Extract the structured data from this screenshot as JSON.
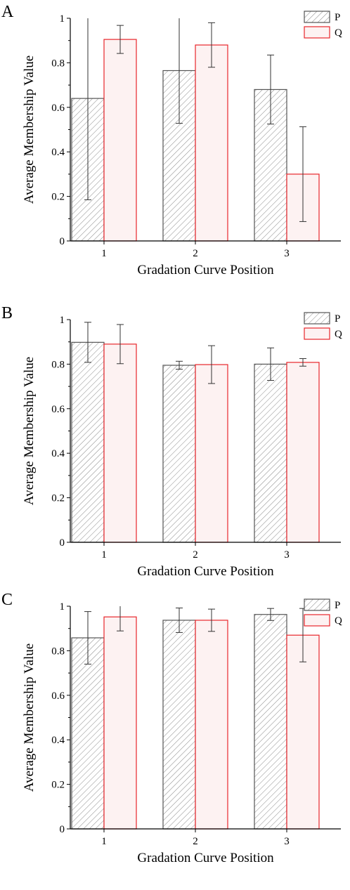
{
  "chart_data": [
    {
      "panel_label": "A",
      "type": "bar",
      "xlabel": "Gradation Curve Position",
      "ylabel": "Average Membership Value",
      "ylim": [
        0,
        1
      ],
      "yticks": [
        "0",
        "0.2",
        "0.4",
        "0.6",
        "0.8",
        "1"
      ],
      "categories": [
        "1",
        "2",
        "3"
      ],
      "legend_position": "top-right",
      "series": [
        {
          "name": "P",
          "values": [
            0.64,
            0.765,
            0.68
          ],
          "errors": [
            0.455,
            0.237,
            0.155
          ],
          "style": "hatched",
          "color": "#555555"
        },
        {
          "name": "Q",
          "values": [
            0.905,
            0.88,
            0.3
          ],
          "errors": [
            0.063,
            0.1,
            0.213
          ],
          "style": "filled",
          "color": "#e8262b",
          "fill": "#fdf2f2"
        }
      ]
    },
    {
      "panel_label": "B",
      "type": "bar",
      "xlabel": "Gradation Curve Position",
      "ylabel": "Average Membership Value",
      "ylim": [
        0,
        1
      ],
      "yticks": [
        "0",
        "0.2",
        "0.4",
        "0.6",
        "0.8",
        "1"
      ],
      "categories": [
        "1",
        "2",
        "3"
      ],
      "legend_position": "top-right",
      "series": [
        {
          "name": "P",
          "values": [
            0.898,
            0.795,
            0.8
          ],
          "errors": [
            0.09,
            0.018,
            0.073
          ],
          "style": "hatched",
          "color": "#555555"
        },
        {
          "name": "Q",
          "values": [
            0.89,
            0.798,
            0.808
          ],
          "errors": [
            0.088,
            0.085,
            0.017
          ],
          "style": "filled",
          "color": "#e8262b",
          "fill": "#fdf2f2"
        }
      ]
    },
    {
      "panel_label": "C",
      "type": "bar",
      "xlabel": "Gradation Curve Position",
      "ylabel": "Average Membership Value",
      "ylim": [
        0,
        1
      ],
      "yticks": [
        "0",
        "0.2",
        "0.4",
        "0.6",
        "0.8",
        "1"
      ],
      "categories": [
        "1",
        "2",
        "3"
      ],
      "legend_position": "top-right",
      "series": [
        {
          "name": "P",
          "values": [
            0.858,
            0.937,
            0.963
          ],
          "errors": [
            0.118,
            0.055,
            0.027
          ],
          "style": "hatched",
          "color": "#555555"
        },
        {
          "name": "Q",
          "values": [
            0.952,
            0.937,
            0.87
          ],
          "errors": [
            0.063,
            0.05,
            0.12
          ],
          "style": "filled",
          "color": "#e8262b",
          "fill": "#fdf2f2"
        }
      ]
    }
  ]
}
